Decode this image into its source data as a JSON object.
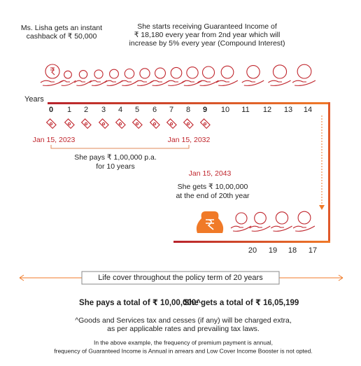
{
  "header": {
    "cashback_text": [
      "Ms. Lisha gets an instant",
      "cashback of ₹ 50,000"
    ],
    "income_text": [
      "She starts receiving Guaranteed Income of",
      "₹ 18,180 every year from 2nd year which will",
      "increase by 5% every year (Compound Interest)"
    ]
  },
  "timeline": {
    "years_label": "Years",
    "years": [
      0,
      1,
      2,
      3,
      4,
      5,
      6,
      7,
      8,
      9,
      10,
      11,
      12,
      13,
      14
    ],
    "end_years": [
      20,
      19,
      18,
      17
    ],
    "start_date": "Jan 15, 2023",
    "end_date": "Jan 15, 2032",
    "pays_text": [
      "She pays ₹ 1,00,000 p.a.",
      "for 10 years"
    ],
    "maturity_date": "Jan 15, 2043",
    "gets_text": [
      "She gets ₹ 10,00,000",
      "at the end of 20th year"
    ]
  },
  "life_cover": "Life cover throughout the policy term of 20 years",
  "totals": {
    "pays": "She pays a total of ₹ 10,00,000^",
    "gets": "She gets a total of  ₹ 16,05,199"
  },
  "notes": {
    "tax": [
      "^Goods and Services tax  and cesses (if any) will be charged extra,",
      "as per applicable rates and prevailing tax laws."
    ],
    "example": [
      "In the above example, the frequency of premium payment is annual,",
      "frequency of Guaranteed Income is Annual in arrears and Low Cover Income Booster is not opted."
    ]
  }
}
